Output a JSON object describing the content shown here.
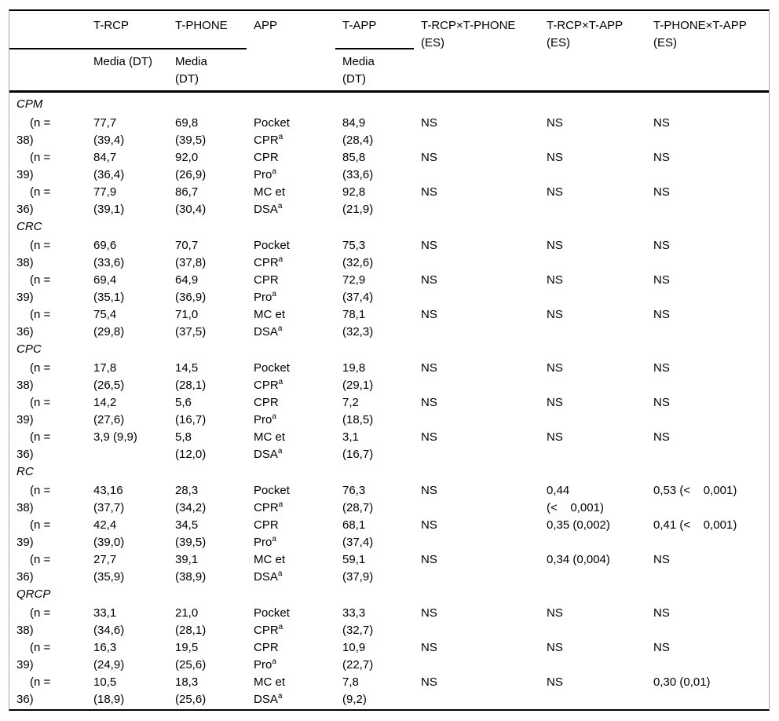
{
  "colors": {
    "background": "#ffffff",
    "text": "#000000",
    "rule": "#000000",
    "frame_border": "#a6a6a6"
  },
  "table": {
    "column_ids": [
      "row",
      "t_rcp",
      "t_phone",
      "app",
      "t_app",
      "es_rcp_phone",
      "es_rcp_app",
      "es_phone_app"
    ],
    "header": {
      "row1": [
        [],
        [
          "T-RCP"
        ],
        [
          "T-PHONE"
        ],
        [
          "APP"
        ],
        [
          "T-APP"
        ],
        [
          "T-RCP×T-PHONE",
          "(ES)"
        ],
        [
          "T-RCP×T-APP",
          "(ES)"
        ],
        [
          "T-PHONE×T-APP",
          "(ES)"
        ]
      ],
      "row2": [
        [],
        [
          "Media (DT)"
        ],
        [
          "Media",
          "(DT)"
        ],
        [],
        [
          "Media",
          "(DT)"
        ],
        [],
        [],
        []
      ]
    },
    "footnote_marker": "a",
    "sections": [
      {
        "name": "CPM",
        "rows": [
          [
            [
              "(n =",
              "38)"
            ],
            [
              "77,7",
              "(39,4)"
            ],
            [
              "69,8",
              "(39,5)"
            ],
            [
              "Pocket",
              "CPR^a"
            ],
            [
              "84,9",
              "(28,4)"
            ],
            [
              "NS"
            ],
            [
              "NS"
            ],
            [
              "NS"
            ]
          ],
          [
            [
              "(n =",
              "39)"
            ],
            [
              "84,7",
              "(36,4)"
            ],
            [
              "92,0",
              "(26,9)"
            ],
            [
              "CPR",
              "Pro^a"
            ],
            [
              "85,8",
              "(33,6)"
            ],
            [
              "NS"
            ],
            [
              "NS"
            ],
            [
              "NS"
            ]
          ],
          [
            [
              "(n =",
              "36)"
            ],
            [
              "77,9",
              "(39,1)"
            ],
            [
              "86,7",
              "(30,4)"
            ],
            [
              "MC et",
              "DSA^a"
            ],
            [
              "92,8",
              "(21,9)"
            ],
            [
              "NS"
            ],
            [
              "NS"
            ],
            [
              "NS"
            ]
          ]
        ]
      },
      {
        "name": "CRC",
        "rows": [
          [
            [
              "(n =",
              "38)"
            ],
            [
              "69,6",
              "(33,6)"
            ],
            [
              "70,7",
              "(37,8)"
            ],
            [
              "Pocket",
              "CPR^a"
            ],
            [
              "75,3",
              "(32,6)"
            ],
            [
              "NS"
            ],
            [
              "NS"
            ],
            [
              "NS"
            ]
          ],
          [
            [
              "(n =",
              "39)"
            ],
            [
              "69,4",
              "(35,1)"
            ],
            [
              "64,9",
              "(36,9)"
            ],
            [
              "CPR",
              "Pro^a"
            ],
            [
              "72,9",
              "(37,4)"
            ],
            [
              "NS"
            ],
            [
              "NS"
            ],
            [
              "NS"
            ]
          ],
          [
            [
              "(n =",
              "36)"
            ],
            [
              "75,4",
              "(29,8)"
            ],
            [
              "71,0",
              "(37,5)"
            ],
            [
              "MC et",
              "DSA^a"
            ],
            [
              "78,1",
              "(32,3)"
            ],
            [
              "NS"
            ],
            [
              "NS"
            ],
            [
              "NS"
            ]
          ]
        ]
      },
      {
        "name": "CPC",
        "rows": [
          [
            [
              "(n =",
              "38)"
            ],
            [
              "17,8",
              "(26,5)"
            ],
            [
              "14,5",
              "(28,1)"
            ],
            [
              "Pocket",
              "CPR^a"
            ],
            [
              "19,8",
              "(29,1)"
            ],
            [
              "NS"
            ],
            [
              "NS"
            ],
            [
              "NS"
            ]
          ],
          [
            [
              "(n =",
              "39)"
            ],
            [
              "14,2",
              "(27,6)"
            ],
            [
              "5,6",
              "(16,7)"
            ],
            [
              "CPR",
              "Pro^a"
            ],
            [
              "7,2",
              "(18,5)"
            ],
            [
              "NS"
            ],
            [
              "NS"
            ],
            [
              "NS"
            ]
          ],
          [
            [
              "(n =",
              "36)"
            ],
            [
              "3,9 (9,9)"
            ],
            [
              "5,8",
              "(12,0)"
            ],
            [
              "MC et",
              "DSA^a"
            ],
            [
              "3,1",
              "(16,7)"
            ],
            [
              "NS"
            ],
            [
              "NS"
            ],
            [
              "NS"
            ]
          ]
        ]
      },
      {
        "name": "RC",
        "rows": [
          [
            [
              "(n =",
              "38)"
            ],
            [
              "43,16",
              "(37,7)"
            ],
            [
              "28,3",
              "(34,2)"
            ],
            [
              "Pocket",
              "CPR^a"
            ],
            [
              "76,3",
              "(28,7)"
            ],
            [
              "NS"
            ],
            [
              "0,44",
              "(<    0,001)"
            ],
            [
              "0,53 (<    0,001)"
            ]
          ],
          [
            [
              "(n =",
              "39)"
            ],
            [
              "42,4",
              "(39,0)"
            ],
            [
              "34,5",
              "(39,5)"
            ],
            [
              "CPR",
              "Pro^a"
            ],
            [
              "68,1",
              "(37,4)"
            ],
            [
              "NS"
            ],
            [
              "0,35 (0,002)"
            ],
            [
              "0,41 (<    0,001)"
            ]
          ],
          [
            [
              "(n =",
              "36)"
            ],
            [
              "27,7",
              "(35,9)"
            ],
            [
              "39,1",
              "(38,9)"
            ],
            [
              "MC et",
              "DSA^a"
            ],
            [
              "59,1",
              "(37,9)"
            ],
            [
              "NS"
            ],
            [
              "0,34 (0,004)"
            ],
            [
              "NS"
            ]
          ]
        ]
      },
      {
        "name": "QRCP",
        "rows": [
          [
            [
              "(n =",
              "38)"
            ],
            [
              "33,1",
              "(34,6)"
            ],
            [
              "21,0",
              "(28,1)"
            ],
            [
              "Pocket",
              "CPR^a"
            ],
            [
              "33,3",
              "(32,7)"
            ],
            [
              "NS"
            ],
            [
              "NS"
            ],
            [
              "NS"
            ]
          ],
          [
            [
              "(n =",
              "39)"
            ],
            [
              "16,3",
              "(24,9)"
            ],
            [
              "19,5",
              "(25,6)"
            ],
            [
              "CPR",
              "Pro^a"
            ],
            [
              "10,9",
              "(22,7)"
            ],
            [
              "NS"
            ],
            [
              "NS"
            ],
            [
              "NS"
            ]
          ],
          [
            [
              "(n =",
              "36)"
            ],
            [
              "10,5",
              "(18,9)"
            ],
            [
              "18,3",
              "(25,6)"
            ],
            [
              "MC et",
              "DSA^a"
            ],
            [
              "7,8",
              "(9,2)"
            ],
            [
              "NS"
            ],
            [
              "NS"
            ],
            [
              "0,30 (0,01)"
            ]
          ]
        ]
      }
    ]
  }
}
